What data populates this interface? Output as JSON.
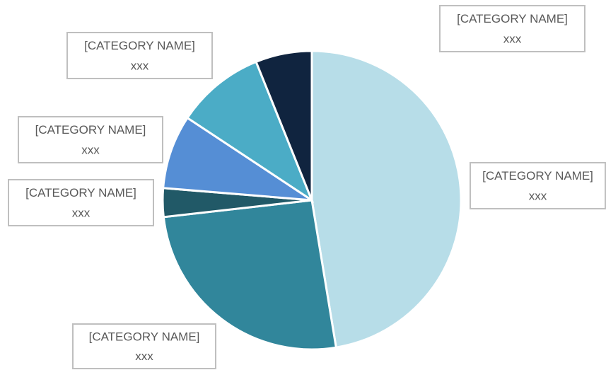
{
  "chart_data": {
    "type": "pie",
    "categories": [
      "[CATEGORY NAME]",
      "[CATEGORY NAME]",
      "[CATEGORY NAME]",
      "[CATEGORY NAME]",
      "[CATEGORY NAME]",
      "[CATEGORY NAME]"
    ],
    "values": [
      47.4,
      25.8,
      3.1,
      8.0,
      9.6,
      6.1
    ],
    "value_labels": [
      "xxx",
      "xxx",
      "xxx",
      "xxx",
      "xxx",
      "xxx"
    ],
    "colors": [
      "#b7dde8",
      "#31869b",
      "#215967",
      "#558ed5",
      "#4bacc6",
      "#10243f"
    ]
  }
}
